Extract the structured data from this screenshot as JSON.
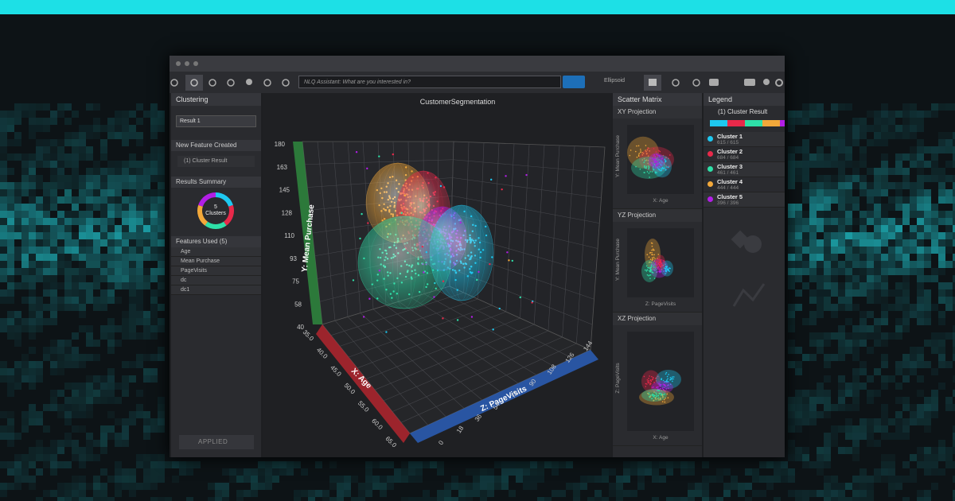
{
  "toolbar": {
    "nlq_placeholder": "NLQ Assistant: What are you interested in?",
    "render_mode": "Ellipsoid"
  },
  "clustering_panel": {
    "title": "Clustering",
    "result_select": "Result 1",
    "new_feature_heading": "New Feature Created",
    "new_feature": "(1) Cluster Result",
    "results_summary_heading": "Results Summary",
    "cluster_count": "5",
    "cluster_count_label": "Clusters",
    "features_heading": "Features Used (5)",
    "features": [
      "Age",
      "Mean Purchase",
      "PageVisits",
      "dc",
      "dc1"
    ],
    "apply_button": "APPLIED"
  },
  "plot": {
    "title": "CustomerSegmentation",
    "y_axis": {
      "label": "Y: Mean Purchase",
      "ticks": [
        "180",
        "163",
        "145",
        "128",
        "110",
        "93",
        "75",
        "58",
        "40"
      ]
    },
    "x_axis": {
      "label": "X: Age",
      "ticks": [
        "35.0",
        "40.0",
        "45.0",
        "50.0",
        "55.0",
        "60.0",
        "65.0"
      ]
    },
    "z_axis": {
      "label": "Z: PageVisits",
      "ticks": [
        "0",
        "18",
        "36",
        "54",
        "72",
        "90",
        "108",
        "126",
        "144"
      ]
    }
  },
  "scatter_matrix": {
    "title": "Scatter Matrix",
    "projections": [
      {
        "title": "XY Projection",
        "y_label": "Y: Mean Purchase",
        "x_label": "X: Age"
      },
      {
        "title": "YZ Projection",
        "y_label": "Y: Mean Purchase",
        "x_label": "Z: PageVisits"
      },
      {
        "title": "XZ Projection",
        "y_label": "Z: PageVisits",
        "x_label": "X: Age"
      }
    ]
  },
  "legend": {
    "title": "Legend",
    "group": "(1) Cluster Result",
    "clusters": [
      {
        "name": "Cluster 1",
        "count": "615 / 615"
      },
      {
        "name": "Cluster 2",
        "count": "684 / 684"
      },
      {
        "name": "Cluster 3",
        "count": "461 / 461"
      },
      {
        "name": "Cluster 4",
        "count": "444 / 444"
      },
      {
        "name": "Cluster 5",
        "count": "396 / 396"
      }
    ]
  }
}
